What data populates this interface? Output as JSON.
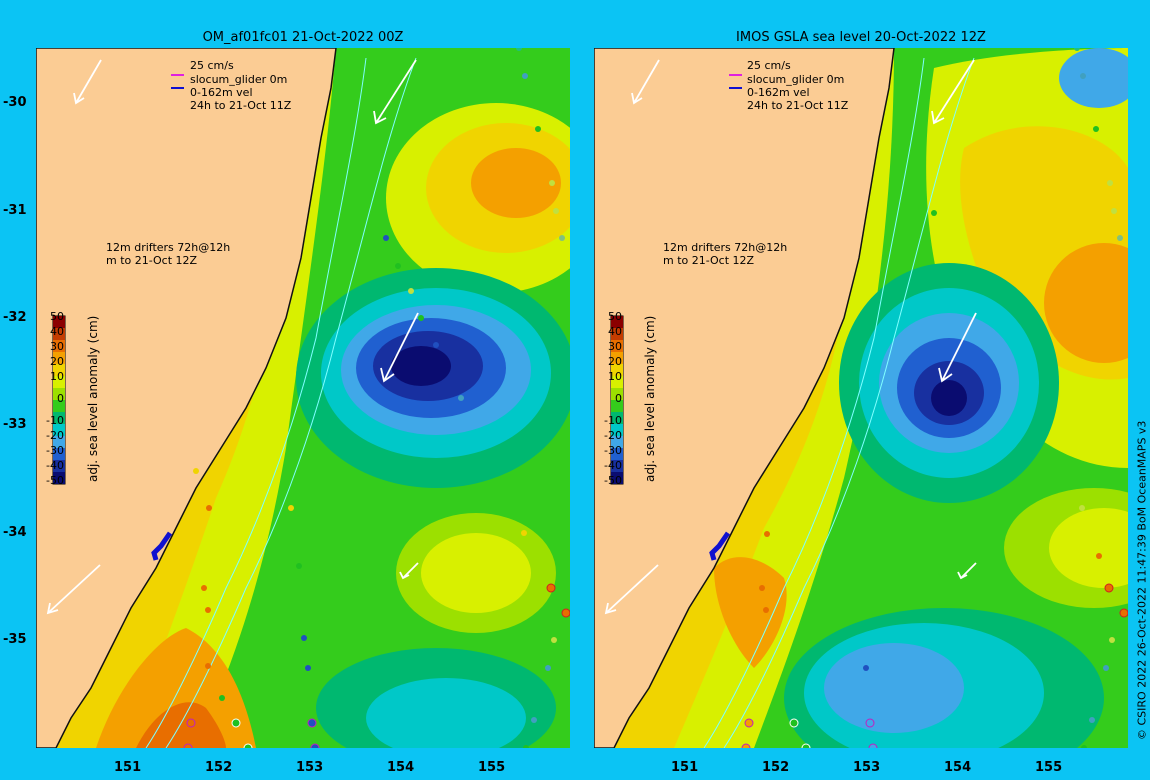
{
  "panels": [
    {
      "title": "OM_af01fc01 21-Oct-2022 00Z",
      "legend": {
        "scale": "25 cm/s",
        "glider": "slocum_glider 0m",
        "vel": "0-162m vel",
        "window": "24h to 21-Oct 11Z"
      },
      "drifters": {
        "line1": "12m  drifters 72h@12h",
        "line2": "m  to 21-Oct 12Z"
      }
    },
    {
      "title": "IMOS GSLA sea level  20-Oct-2022 12Z",
      "legend": {
        "scale": "25 cm/s",
        "glider": "slocum_glider 0m",
        "vel": "0-162m vel",
        "window": "24h to 21-Oct 11Z"
      },
      "drifters": {
        "line1": "12m  drifters 72h@12h",
        "line2": "m  to 21-Oct 12Z"
      }
    }
  ],
  "y_ticks": [
    "-30",
    "-31",
    "-32",
    "-33",
    "-34",
    "-35"
  ],
  "x_ticks": [
    "151",
    "152",
    "153",
    "154",
    "155"
  ],
  "colorbar": {
    "title": "adj. sea level anomaly (cm)",
    "labels": [
      "50",
      "40",
      "30",
      "20",
      "10",
      "0",
      "-10",
      "-20",
      "-30",
      "-40",
      "-50"
    ],
    "colors": [
      "#8b0000",
      "#c43c00",
      "#e86e00",
      "#f4a000",
      "#f0d400",
      "#d8f000",
      "#9ce000",
      "#34cc1c",
      "#00b870",
      "#00c8c8",
      "#40a8e8",
      "#2060d0",
      "#1830a0",
      "#0a0c70"
    ]
  },
  "land_color": "#fbcc94",
  "credit": "© CSIRO 2022   26-Oct-2022 11:47:39 BoM OceanMAPS v3"
}
